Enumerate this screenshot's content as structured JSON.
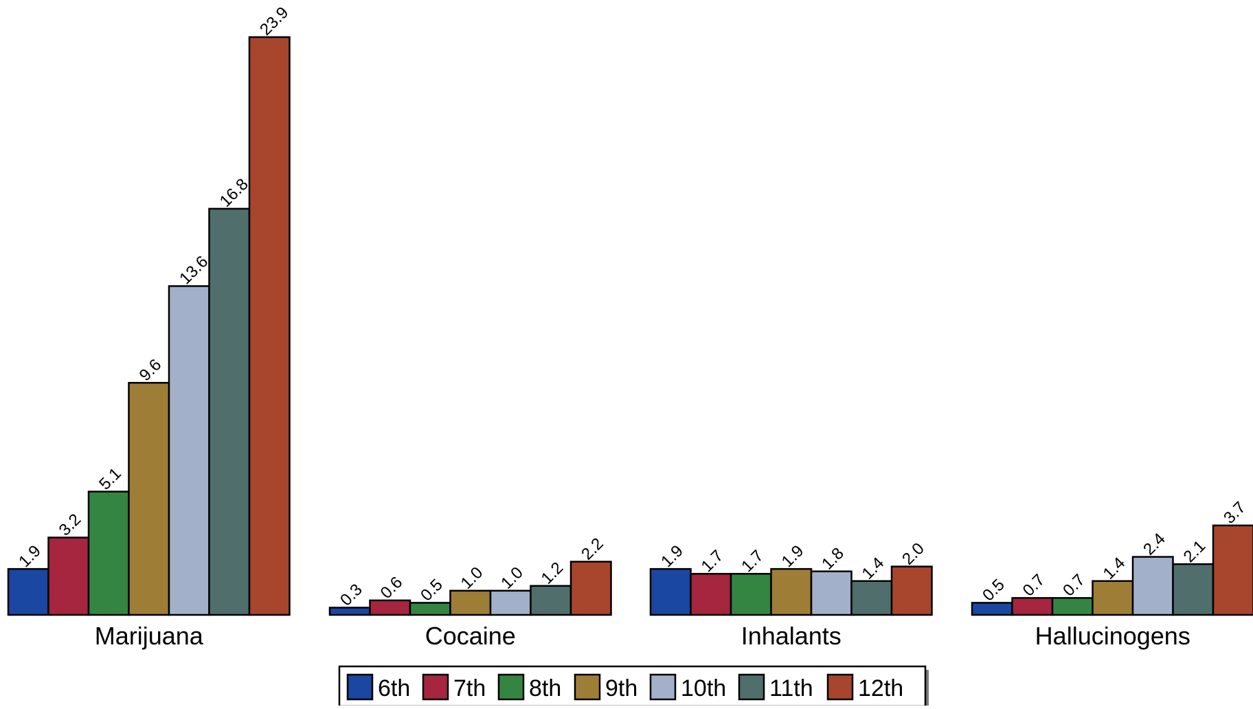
{
  "chart_data": {
    "type": "bar",
    "categories": [
      "Marijuana",
      "Cocaine",
      "Inhalants",
      "Hallucinogens"
    ],
    "series": [
      {
        "name": "6th",
        "color": "#1a47a1",
        "values": [
          1.9,
          0.3,
          1.9,
          0.5
        ],
        "labels": [
          "1.9",
          "0.3",
          "1.9",
          "0.5"
        ]
      },
      {
        "name": "7th",
        "color": "#a6253f",
        "values": [
          3.2,
          0.6,
          1.7,
          0.7
        ],
        "labels": [
          "3.2",
          "0.6",
          "1.7",
          "0.7"
        ]
      },
      {
        "name": "8th",
        "color": "#358542",
        "values": [
          5.1,
          0.5,
          1.7,
          0.7
        ],
        "labels": [
          "5.1",
          "0.5",
          "1.7",
          "0.7"
        ]
      },
      {
        "name": "9th",
        "color": "#9e7e36",
        "values": [
          9.6,
          1.0,
          1.9,
          1.4
        ],
        "labels": [
          "9.6",
          "1.0",
          "1.9",
          "1.4"
        ]
      },
      {
        "name": "10th",
        "color": "#a3b0c9",
        "values": [
          13.6,
          1.0,
          1.8,
          2.4
        ],
        "labels": [
          "13.6",
          "1.0",
          "1.8",
          "2.4"
        ]
      },
      {
        "name": "11th",
        "color": "#4f6e6c",
        "values": [
          16.8,
          1.2,
          1.4,
          2.1
        ],
        "labels": [
          "16.8",
          "1.2",
          "1.4",
          "2.1"
        ]
      },
      {
        "name": "12th",
        "color": "#a8452d",
        "values": [
          23.9,
          2.2,
          2.0,
          3.7
        ],
        "labels": [
          "23.9",
          "2.2",
          "2.0",
          "3.7"
        ]
      }
    ],
    "title": "",
    "xlabel": "",
    "ylabel": "",
    "ylim": [
      0,
      23.9
    ],
    "grid": false,
    "legend_position": "bottom-center",
    "bar_outline_color": "#000000"
  }
}
